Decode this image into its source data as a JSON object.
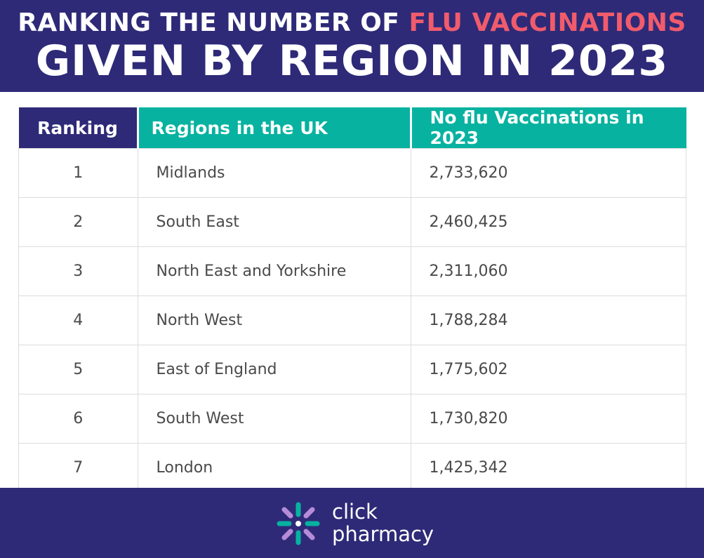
{
  "header": {
    "title_line1_prefix": "RANKING THE NUMBER OF ",
    "title_line1_accent": "FLU VACCINATIONS",
    "title_line2": "GIVEN BY REGION IN 2023",
    "accent_color": "#f15b6c",
    "background_color": "#2e2a78"
  },
  "chart_data": {
    "type": "table",
    "columns": [
      "Ranking",
      "Regions in the UK",
      "No flu Vaccinations in 2023"
    ],
    "rows": [
      [
        "1",
        "Midlands",
        "2,733,620"
      ],
      [
        "2",
        "South East",
        "2,460,425"
      ],
      [
        "3",
        "North East and Yorkshire",
        "2,311,060"
      ],
      [
        "4",
        "North West",
        "1,788,284"
      ],
      [
        "5",
        "East of England",
        "1,775,602"
      ],
      [
        "6",
        "South West",
        "1,730,820"
      ],
      [
        "7",
        "London",
        "1,425,342"
      ]
    ],
    "header_colors": [
      "#2e2a78",
      "#07b2a0",
      "#07b2a0"
    ]
  },
  "footer": {
    "logo_icon": "click-pharmacy-logo-icon",
    "logo_line1": "click",
    "logo_line2": "pharmacy"
  }
}
